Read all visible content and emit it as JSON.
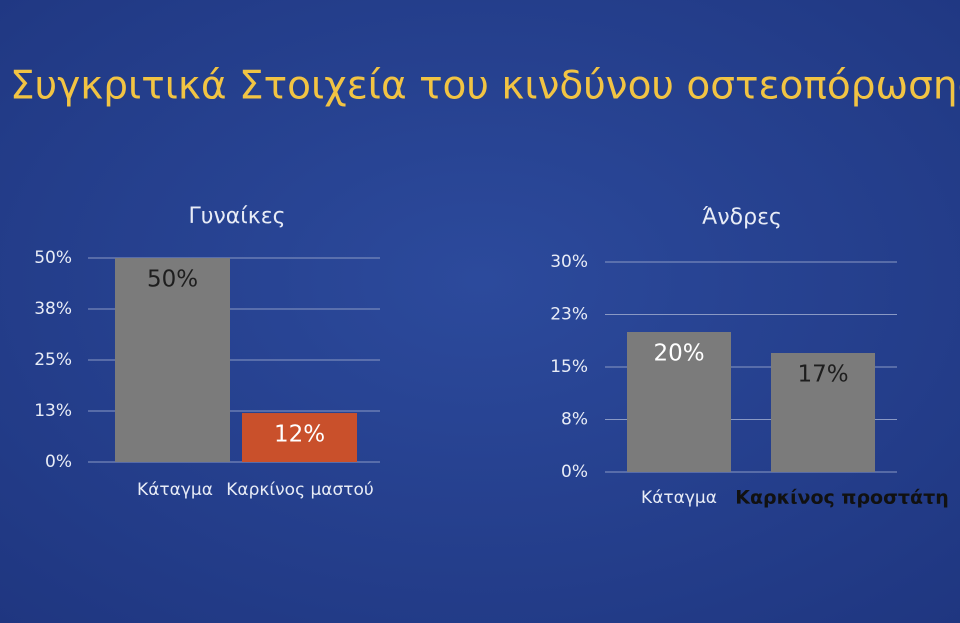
{
  "title": "Συγκριτικά Στοιχεία του κινδύνου οστεοπόρωσης",
  "chart_data": [
    {
      "type": "bar",
      "title": "Γυναίκες",
      "categories": [
        "Κάταγμα",
        "Καρκίνος μαστού"
      ],
      "values": [
        50,
        12
      ],
      "value_labels": [
        "50%",
        "12%"
      ],
      "colors": [
        "#7b7b7b",
        "#c9502b"
      ],
      "ylim": [
        0,
        50
      ],
      "yticks": [
        {
          "value": 0,
          "label": "0%"
        },
        {
          "value": 12.5,
          "label": "13%"
        },
        {
          "value": 25,
          "label": "25%"
        },
        {
          "value": 37.5,
          "label": "38%"
        },
        {
          "value": 50,
          "label": "50%"
        }
      ],
      "grid": true
    },
    {
      "type": "bar",
      "title": "Άνδρες",
      "categories": [
        "Κάταγμα",
        "Καρκίνος προστάτη"
      ],
      "values": [
        20,
        17
      ],
      "value_labels": [
        "20%",
        "17%"
      ],
      "colors": [
        "#7b7b7b",
        "#7b7b7b"
      ],
      "ylim": [
        0,
        30
      ],
      "yticks": [
        {
          "value": 0,
          "label": "0%"
        },
        {
          "value": 7.5,
          "label": "8%"
        },
        {
          "value": 15,
          "label": "15%"
        },
        {
          "value": 22.5,
          "label": "23%"
        },
        {
          "value": 30,
          "label": "30%"
        }
      ],
      "grid": true
    }
  ]
}
